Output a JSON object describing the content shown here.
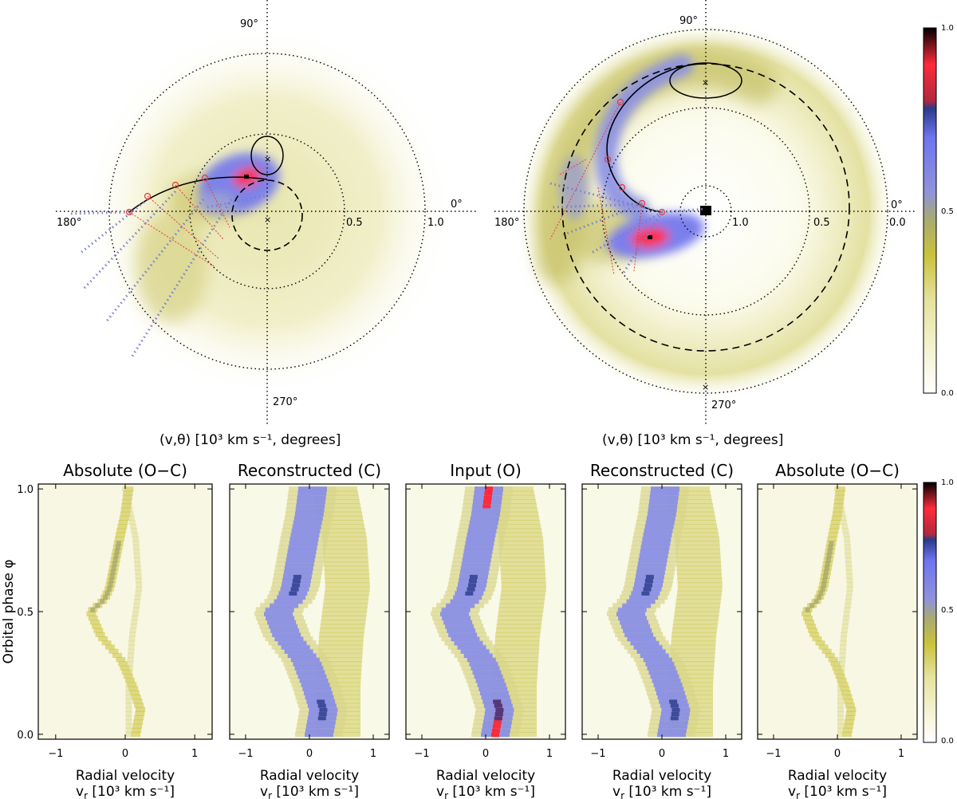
{
  "colors": {
    "colormap": [
      "#ffffff",
      "#f6f5d8",
      "#e2df9a",
      "#c8c136",
      "#9fa36e",
      "#8a8fd8",
      "#6f74f0",
      "#2a3a8a",
      "#e0303a",
      "#000000"
    ],
    "curve": "#000000",
    "red_marker": "#e33a3a",
    "blue_dotted": "#7a7fc6"
  },
  "chart_data": [
    {
      "type": "heatmap",
      "subtype": "polar-doppler-map",
      "xlabel": "(v,θ) [10³ km s⁻¹, degrees]",
      "angle_labels": [
        "90°",
        "180°",
        "270°",
        "0°"
      ],
      "ring_labels": [
        "0.5",
        "1.0"
      ],
      "rings": [
        0.5,
        1.0
      ],
      "vmax": 1.2,
      "emission_peak": {
        "v": 0.25,
        "theta_deg": 120,
        "value": 1.0
      },
      "marked_points": [
        {
          "v": 0.18,
          "theta_deg": 90
        },
        {
          "v": 0.03,
          "theta_deg": 270
        }
      ]
    },
    {
      "type": "heatmap",
      "subtype": "polar-doppler-map",
      "xlabel": "(v,θ) [10³ km s⁻¹, degrees]",
      "angle_labels": [
        "90°",
        "180°",
        "270°",
        "0°"
      ],
      "ring_labels": [
        "1.0",
        "0.5",
        "0.0"
      ],
      "rings": [
        0.0,
        0.5,
        1.0
      ],
      "radial_axis": "reversed",
      "emission_peak": {
        "v": 0.85,
        "theta_deg": 245,
        "value": 1.0
      },
      "marked_points": [
        {
          "v": 0.3,
          "theta_deg": 90
        },
        {
          "v": 0.0,
          "theta_deg": 270
        }
      ]
    },
    {
      "type": "heatmap",
      "subtype": "trailed-spectra",
      "ylabel": "Orbital phase φ",
      "xlabel": "Radial velocity",
      "xlabel2": "v",
      "xlabel2_sub": "r",
      "xlabel2_rest": " [10³ km s⁻¹]",
      "panel_titles": [
        "Absolute (O−C)",
        "Reconstructed (C)",
        "Input (O)",
        "Reconstructed (C)",
        "Absolute (O−C)"
      ],
      "panel_kinds": [
        "residual",
        "model",
        "input",
        "model",
        "residual"
      ],
      "xlim": [
        -1.25,
        1.25
      ],
      "ylim": [
        -0.02,
        1.02
      ],
      "x_ticks": [
        -1,
        0,
        1
      ],
      "y_ticks": [
        0.0,
        0.5,
        1.0
      ],
      "x_tick_labels": [
        "−1",
        "0",
        "1"
      ],
      "y_tick_labels": [
        "0.0",
        "0.5",
        "1.0"
      ],
      "trail_phase": [
        0.0,
        0.1,
        0.2,
        0.3,
        0.4,
        0.5,
        0.55,
        0.6,
        0.7,
        0.8,
        0.9,
        1.0
      ],
      "trail_velocity": [
        0.15,
        0.22,
        0.1,
        -0.05,
        -0.35,
        -0.5,
        -0.3,
        -0.22,
        -0.15,
        -0.08,
        0.0,
        0.05
      ],
      "secondary_phase": [
        0.0,
        0.2,
        0.4,
        0.5,
        0.6,
        0.8,
        1.0
      ],
      "secondary_velocity": [
        0.45,
        0.45,
        0.5,
        0.55,
        0.6,
        0.55,
        0.4
      ]
    },
    {
      "type": "heatmap",
      "subtype": "colorbar",
      "min": 0.0,
      "max": 1.0,
      "tick_labels": [
        "0.0",
        "0.5",
        "1.0"
      ]
    }
  ]
}
